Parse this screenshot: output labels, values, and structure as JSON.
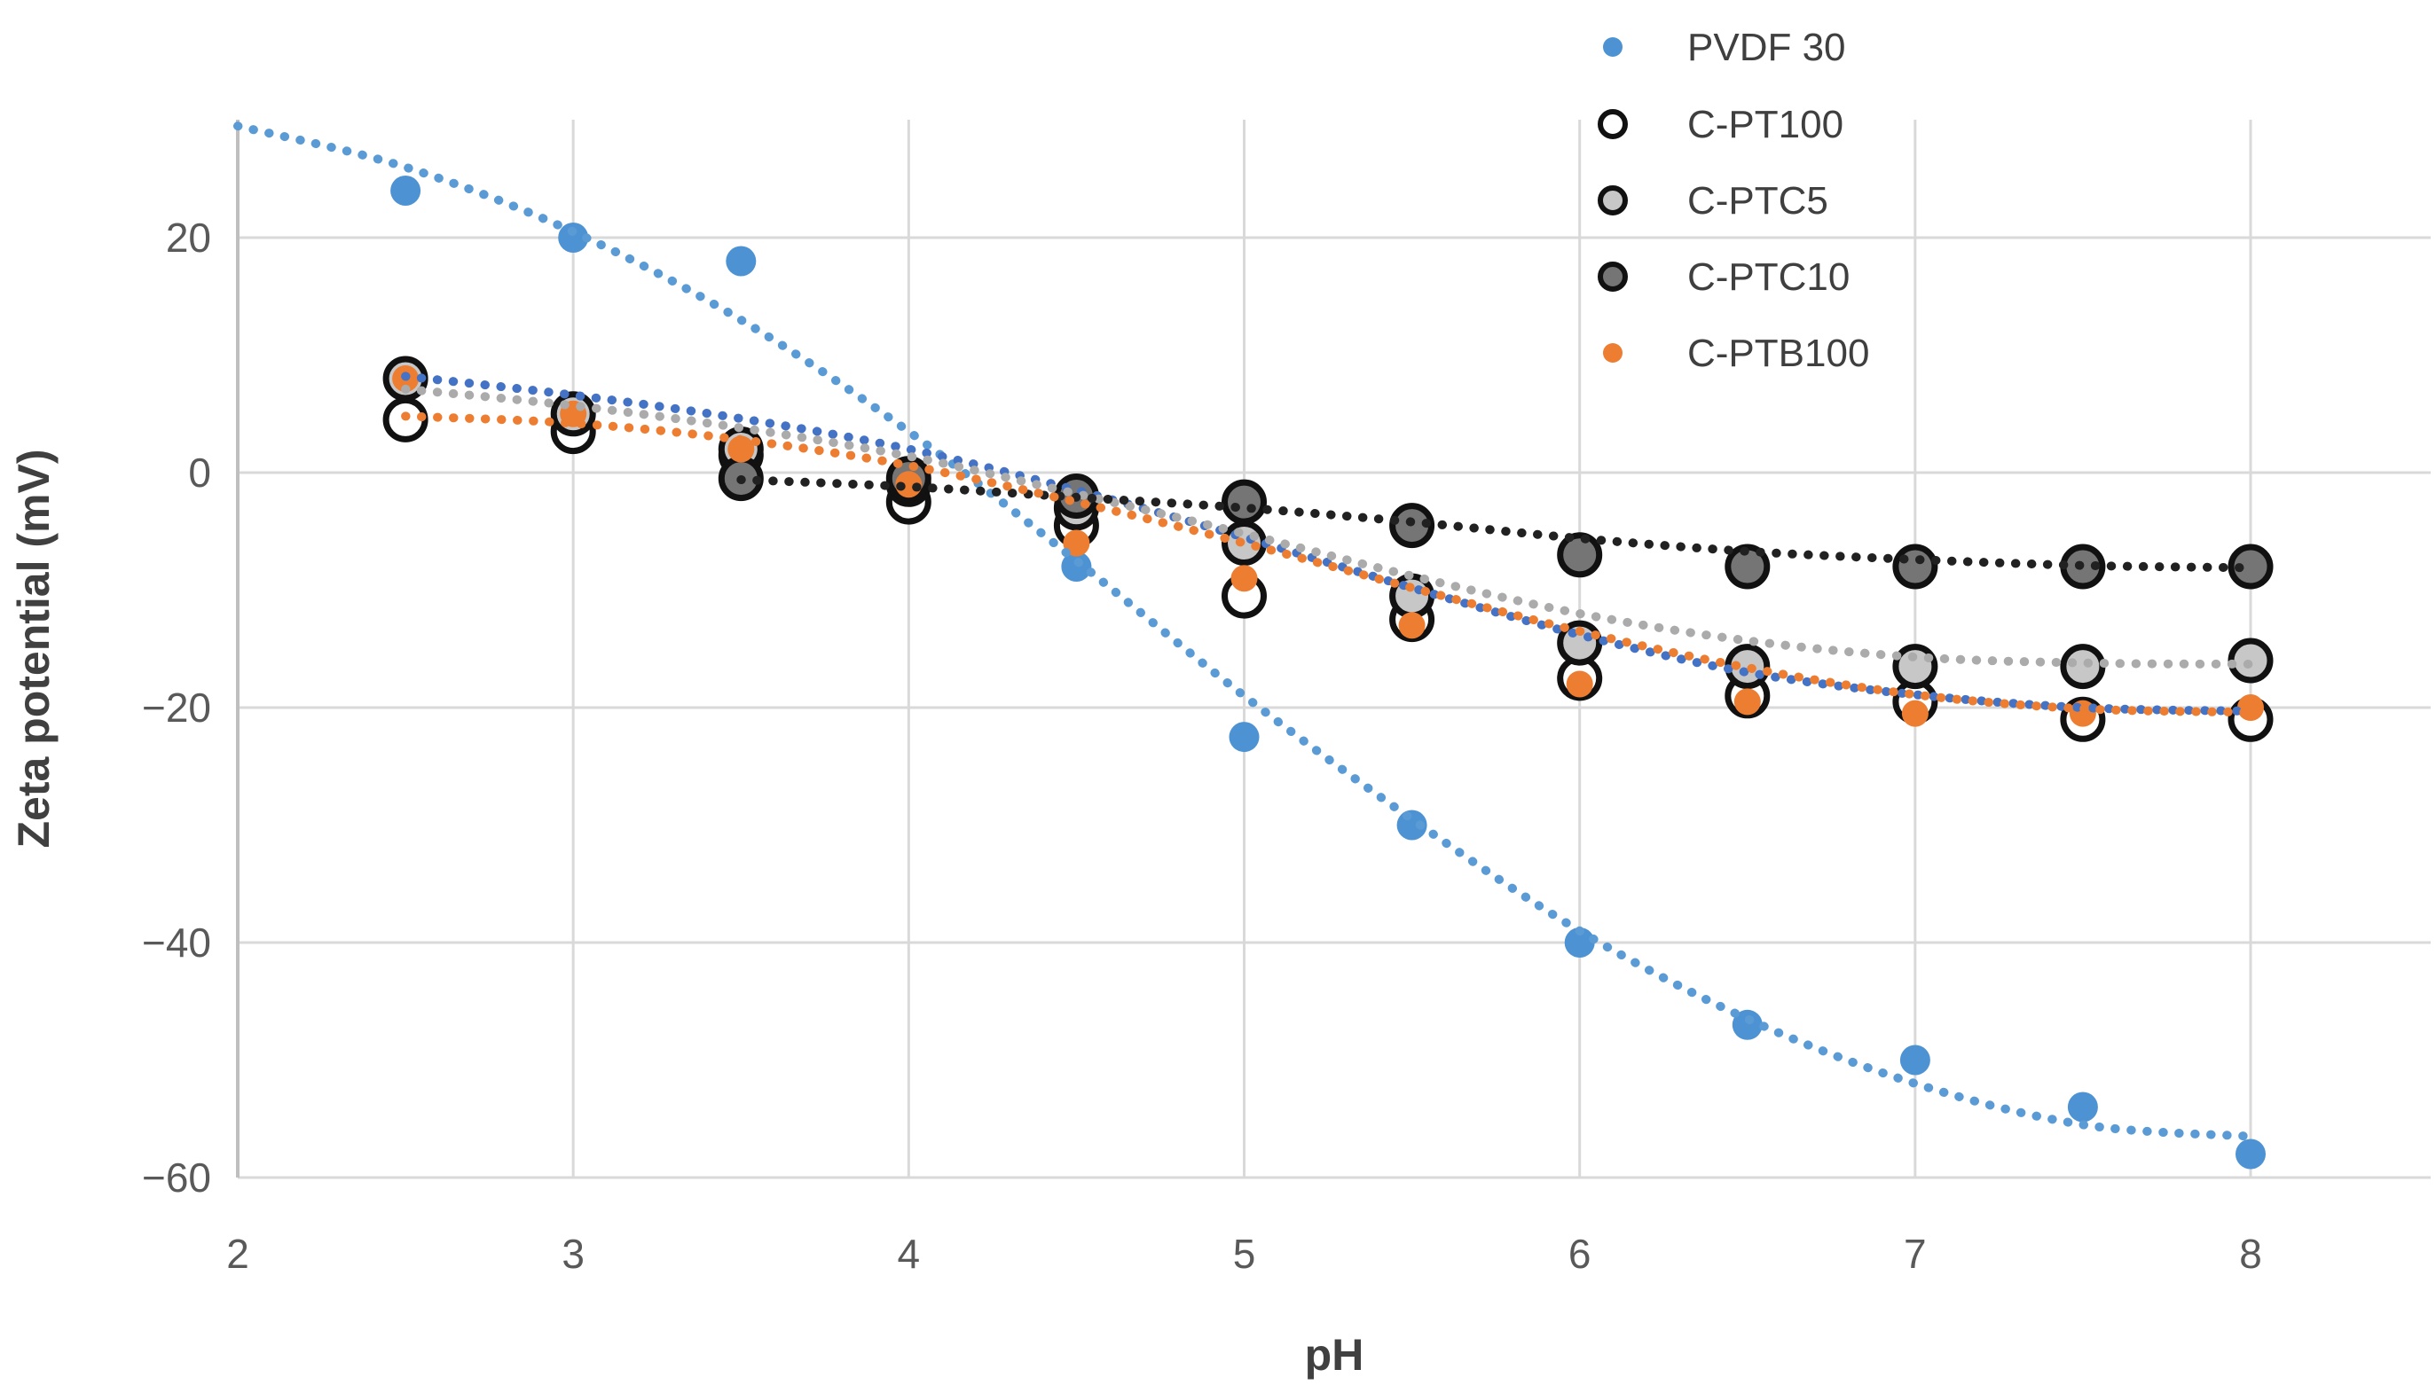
{
  "chart_data": {
    "type": "scatter",
    "title": "",
    "xlabel": "pH",
    "ylabel": "Zeta potential (mV)",
    "xlim": [
      2,
      8.55
    ],
    "ylim": [
      -60,
      30
    ],
    "grid": true,
    "grid_color": "#D9D9D9",
    "background": "#FFFFFF",
    "legend_position": "inside-top-right",
    "x_ticks": [
      2,
      3,
      4,
      5,
      6,
      7,
      8
    ],
    "y_ticks": [
      {
        "v": 20,
        "label": "20"
      },
      {
        "v": 0,
        "label": "0"
      },
      {
        "v": -20,
        "label": "−20"
      },
      {
        "v": -40,
        "label": "−40"
      },
      {
        "v": -60,
        "label": "−60"
      }
    ],
    "series": [
      {
        "name": "PVDF 30",
        "marker_style": "filled-dot",
        "color": "#4D92D3",
        "trend_color": "#5B9BD5",
        "marker_r": 17,
        "points": [
          [
            2.5,
            24
          ],
          [
            3,
            20
          ],
          [
            3.5,
            18
          ],
          [
            4.5,
            -8
          ],
          [
            5,
            -22.5
          ],
          [
            5.5,
            -30
          ],
          [
            6,
            -40
          ],
          [
            6.5,
            -47
          ],
          [
            7,
            -50
          ],
          [
            7.5,
            -54
          ],
          [
            8,
            -58
          ]
        ],
        "trend": [
          [
            2,
            29.5
          ],
          [
            2.5,
            26
          ],
          [
            3,
            20.5
          ],
          [
            3.5,
            13
          ],
          [
            4,
            3.5
          ],
          [
            4.5,
            -7.5
          ],
          [
            5,
            -19
          ],
          [
            5.5,
            -29.5
          ],
          [
            6,
            -39
          ],
          [
            6.5,
            -46.5
          ],
          [
            7,
            -52
          ],
          [
            7.5,
            -55.5
          ],
          [
            8,
            -56.5
          ]
        ]
      },
      {
        "name": "C-PT100",
        "marker_style": "ring",
        "fill": "#FFFFFF",
        "stroke": "#111111",
        "trend_color": "#4472C4",
        "marker_r": 22,
        "points": [
          [
            2.5,
            4.5
          ],
          [
            3,
            3.5
          ],
          [
            3.5,
            1.5
          ],
          [
            4,
            -2.5
          ],
          [
            4.5,
            -4.5
          ],
          [
            5,
            -10.5
          ],
          [
            5.5,
            -12.5
          ],
          [
            6,
            -17.5
          ],
          [
            6.5,
            -19
          ],
          [
            7,
            -19.5
          ],
          [
            7.5,
            -21
          ],
          [
            8,
            -21
          ]
        ],
        "trend": [
          [
            2.5,
            8.2
          ],
          [
            3,
            6.6
          ],
          [
            3.5,
            4.6
          ],
          [
            4,
            2
          ],
          [
            4.5,
            -1.5
          ],
          [
            5,
            -5.5
          ],
          [
            5.5,
            -9.8
          ],
          [
            6,
            -13.8
          ],
          [
            6.5,
            -17
          ],
          [
            7,
            -18.9
          ],
          [
            7.5,
            -20
          ],
          [
            8,
            -20.3
          ]
        ]
      },
      {
        "name": "C-PTC5",
        "marker_style": "ring",
        "fill": "#C7C7C7",
        "stroke": "#111111",
        "trend_color": "#ABABAB",
        "marker_r": 22,
        "points": [
          [
            2.5,
            8
          ],
          [
            3,
            5
          ],
          [
            3.5,
            2
          ],
          [
            4,
            -1
          ],
          [
            4.5,
            -3
          ],
          [
            5,
            -6
          ],
          [
            5.5,
            -10.5
          ],
          [
            6,
            -14.5
          ],
          [
            6.5,
            -16.5
          ],
          [
            7,
            -16.5
          ],
          [
            7.5,
            -16.5
          ],
          [
            8,
            -16
          ]
        ],
        "trend": [
          [
            2.5,
            7.1
          ],
          [
            3,
            5.7
          ],
          [
            3.5,
            3.8
          ],
          [
            4,
            1.4
          ],
          [
            4.5,
            -1.8
          ],
          [
            5,
            -5.2
          ],
          [
            5.5,
            -8.8
          ],
          [
            6,
            -12
          ],
          [
            6.5,
            -14.3
          ],
          [
            7,
            -15.7
          ],
          [
            7.5,
            -16.2
          ],
          [
            8,
            -16.3
          ]
        ]
      },
      {
        "name": "C-PTC10",
        "marker_style": "ring",
        "fill": "#757575",
        "stroke": "#111111",
        "trend_color": "#212121",
        "marker_r": 22,
        "points": [
          [
            3.5,
            -0.5
          ],
          [
            4,
            -0.5
          ],
          [
            4.5,
            -2
          ],
          [
            5,
            -2.5
          ],
          [
            5.5,
            -4.5
          ],
          [
            6,
            -7
          ],
          [
            6.5,
            -8
          ],
          [
            7,
            -8
          ],
          [
            7.5,
            -8
          ],
          [
            8,
            -8
          ]
        ],
        "trend": [
          [
            3.5,
            -0.6
          ],
          [
            4,
            -1.2
          ],
          [
            4.5,
            -2.1
          ],
          [
            5,
            -3
          ],
          [
            5.5,
            -4.2
          ],
          [
            6,
            -5.6
          ],
          [
            6.5,
            -6.7
          ],
          [
            7,
            -7.4
          ],
          [
            7.5,
            -7.9
          ],
          [
            8,
            -8.1
          ]
        ]
      },
      {
        "name": "C-PTB100",
        "marker_style": "filled-dot",
        "color": "#ED7D31",
        "trend_color": "#ED7D31",
        "marker_r": 15,
        "points": [
          [
            2.5,
            8
          ],
          [
            3,
            5
          ],
          [
            3.5,
            2
          ],
          [
            4,
            -1
          ],
          [
            4.5,
            -6
          ],
          [
            5,
            -9
          ],
          [
            5.5,
            -13
          ],
          [
            6,
            -18
          ],
          [
            6.5,
            -19.5
          ],
          [
            7,
            -20.5
          ],
          [
            7.5,
            -20.5
          ],
          [
            8,
            -20
          ]
        ],
        "trend": [
          [
            2.5,
            4.8
          ],
          [
            3,
            4.2
          ],
          [
            3.5,
            2.8
          ],
          [
            4,
            0.6
          ],
          [
            4.5,
            -2.5
          ],
          [
            5,
            -6
          ],
          [
            5.5,
            -9.8
          ],
          [
            6,
            -13.5
          ],
          [
            6.5,
            -16.6
          ],
          [
            7,
            -18.9
          ],
          [
            7.5,
            -20.1
          ],
          [
            8,
            -20.4
          ]
        ]
      }
    ],
    "legend": {
      "items": [
        "PVDF 30",
        "C-PT100",
        "C-PTC5",
        "C-PTC10",
        "C-PTB100"
      ]
    }
  }
}
